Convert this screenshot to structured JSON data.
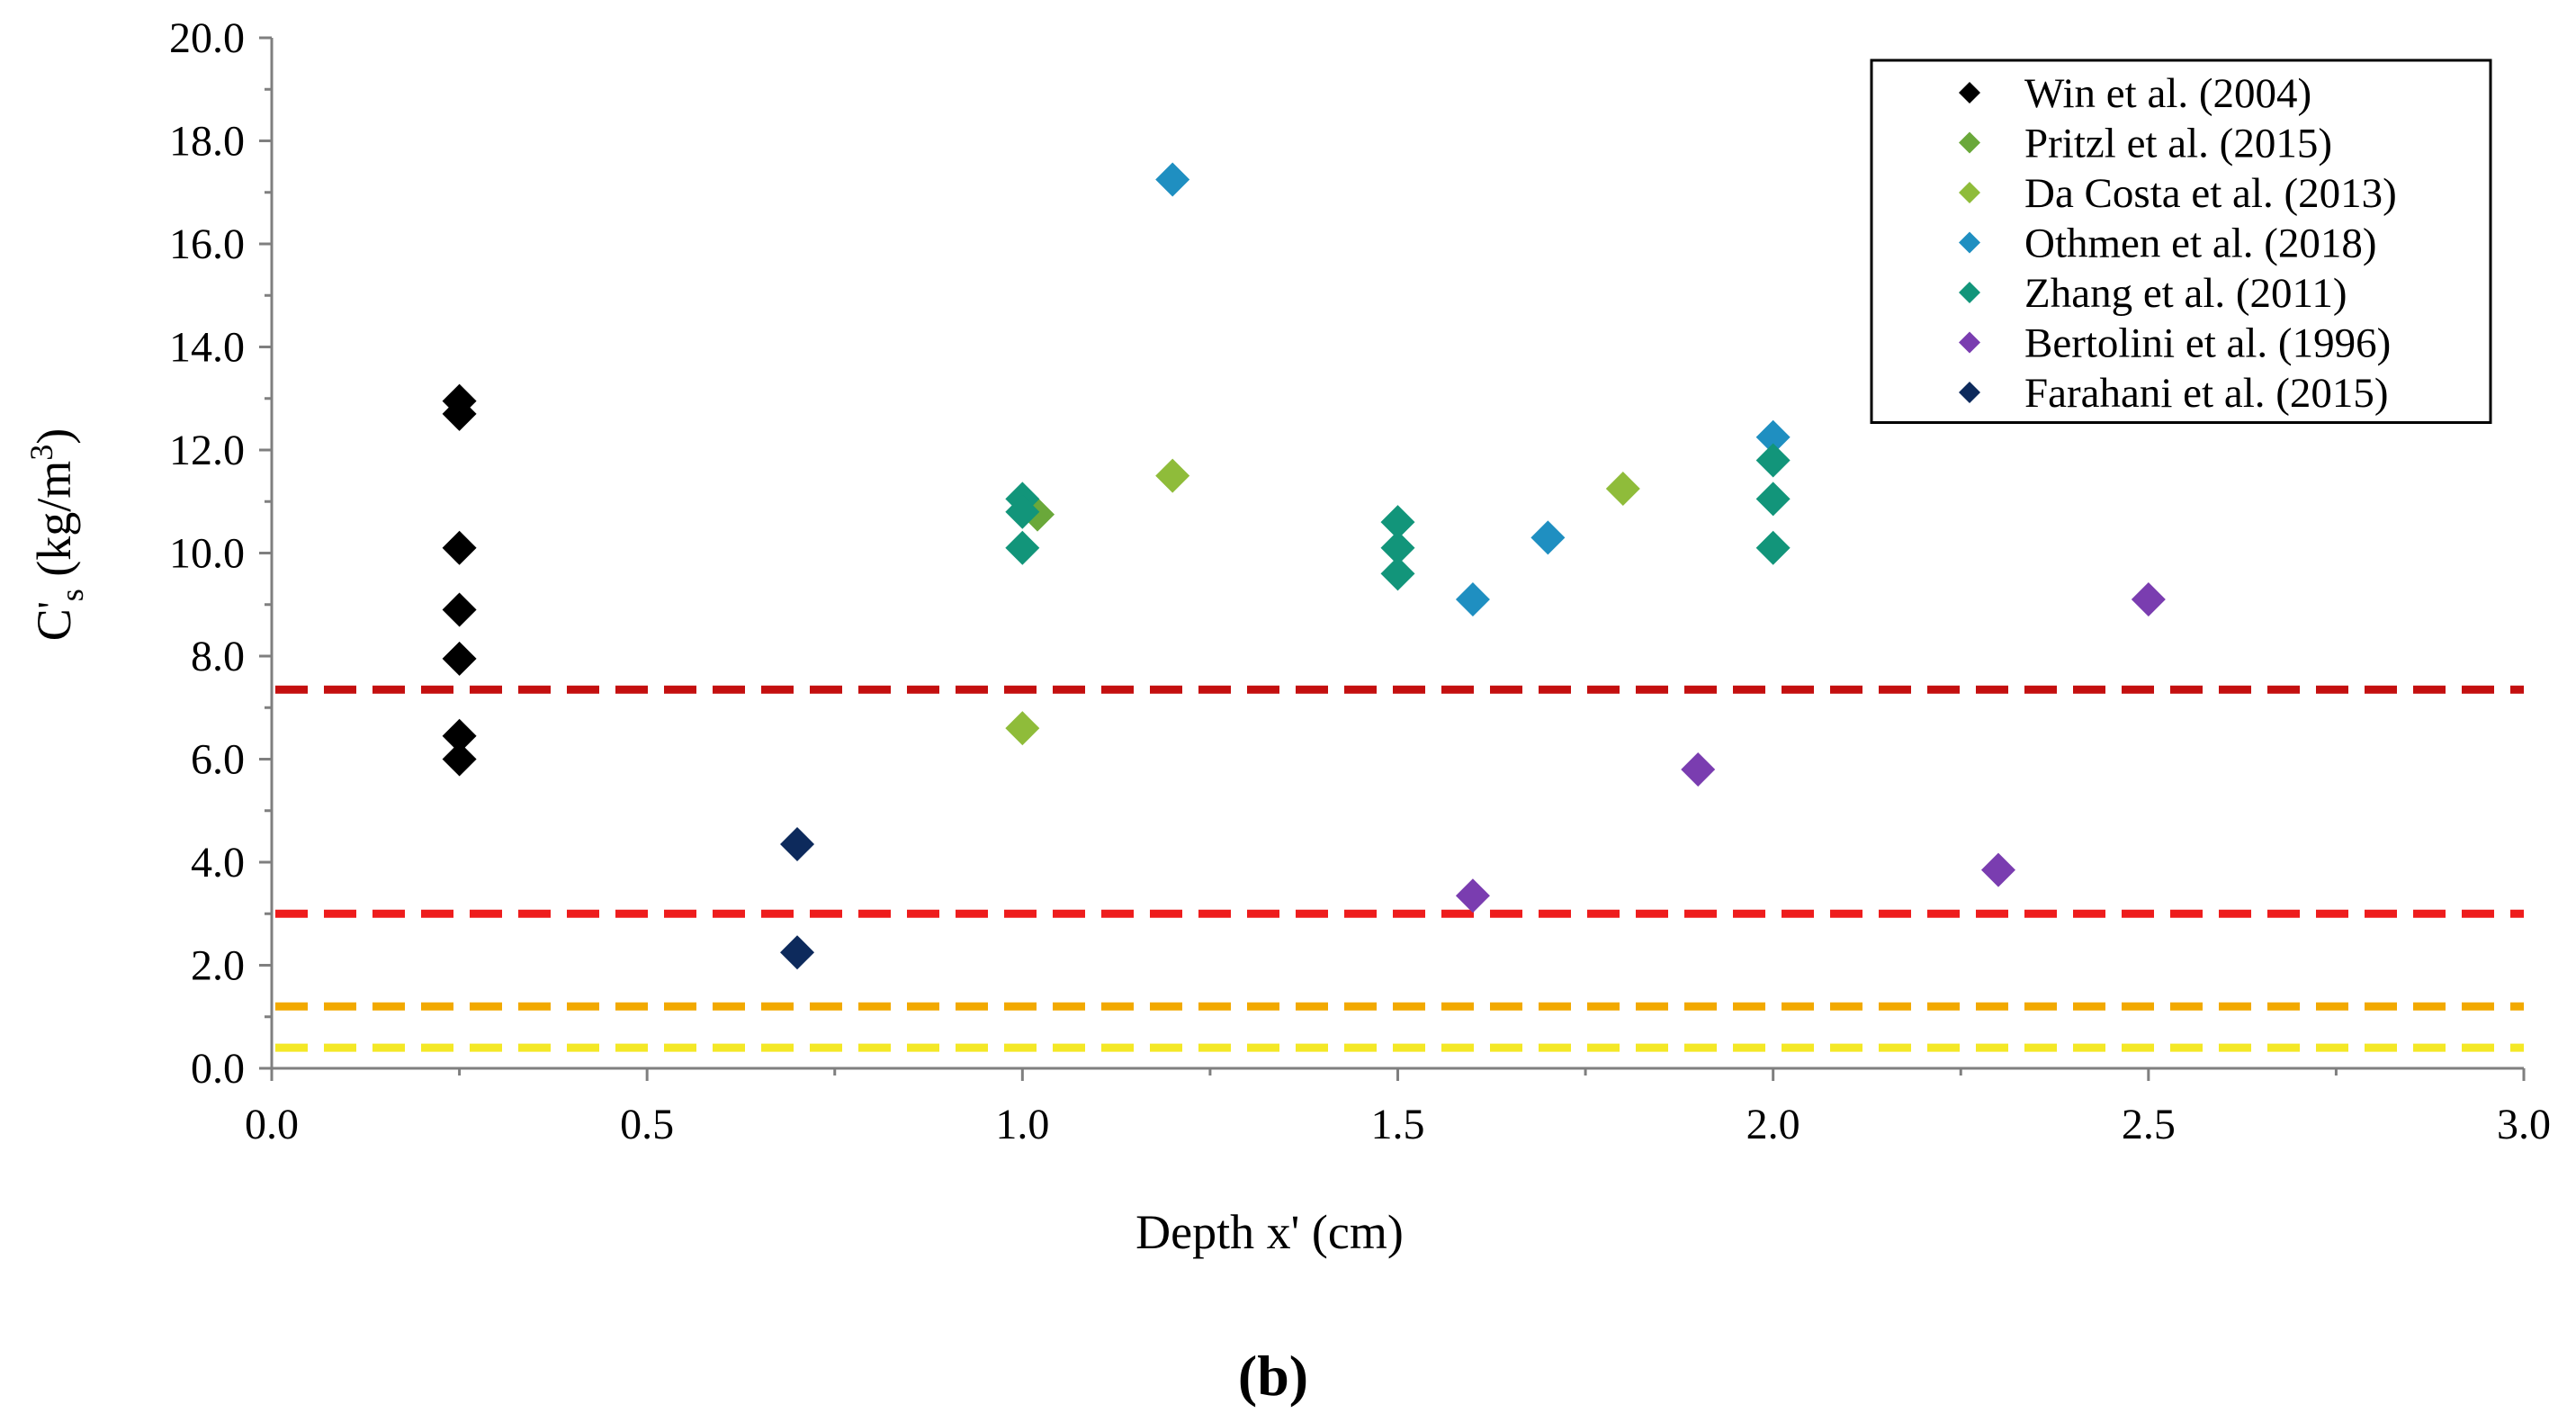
{
  "chart_data": {
    "type": "scatter",
    "xlabel": "Depth x' (cm)",
    "ylabel": {
      "base": "C",
      "sub": "s",
      "prime": "'",
      "unit_open": " (kg/m",
      "sup": "3",
      "unit_close": ")"
    },
    "xlim": [
      0,
      3
    ],
    "ylim": [
      0,
      20
    ],
    "xticks": [
      "0.0",
      "0.5",
      "1.0",
      "1.5",
      "2.0",
      "2.5",
      "3.0"
    ],
    "yticks": [
      "0.0",
      "2.0",
      "4.0",
      "6.0",
      "8.0",
      "10.0",
      "12.0",
      "14.0",
      "16.0",
      "18.0",
      "20.0"
    ],
    "grid": false,
    "legend_position": "top-right",
    "panel_label": "(b)",
    "series": [
      {
        "name": "Win et al. (2004)",
        "color": "#000000",
        "points": [
          [
            0.25,
            12.95
          ],
          [
            0.25,
            12.7
          ],
          [
            0.25,
            10.1
          ],
          [
            0.25,
            8.9
          ],
          [
            0.25,
            7.95
          ],
          [
            0.25,
            6.45
          ],
          [
            0.25,
            6.0
          ]
        ]
      },
      {
        "name": "Pritzl et al. (2015)",
        "color": "#6aa83a",
        "points": [
          [
            1.02,
            10.75
          ]
        ]
      },
      {
        "name": "Da Costa et al. (2013)",
        "color": "#8fbc3a",
        "points": [
          [
            1.0,
            6.6
          ],
          [
            1.2,
            11.5
          ],
          [
            1.8,
            11.25
          ]
        ]
      },
      {
        "name": "Othmen et al. (2018)",
        "color": "#1f8fc1",
        "points": [
          [
            1.2,
            17.25
          ],
          [
            1.6,
            9.1
          ],
          [
            1.7,
            10.3
          ],
          [
            2.0,
            12.25
          ]
        ]
      },
      {
        "name": "Zhang et al. (2011)",
        "color": "#12957a",
        "points": [
          [
            1.0,
            11.05
          ],
          [
            1.0,
            10.8
          ],
          [
            1.0,
            10.1
          ],
          [
            1.5,
            10.6
          ],
          [
            1.5,
            10.1
          ],
          [
            1.5,
            9.6
          ],
          [
            2.0,
            11.8
          ],
          [
            2.0,
            11.05
          ],
          [
            2.0,
            10.1
          ]
        ]
      },
      {
        "name": "Bertolini et al. (1996)",
        "color": "#7a3db0",
        "points": [
          [
            1.6,
            3.35
          ],
          [
            1.9,
            5.8
          ],
          [
            2.3,
            3.85
          ],
          [
            2.5,
            9.1
          ]
        ]
      },
      {
        "name": "Farahani et al. (2015)",
        "color": "#0d2a5c",
        "points": [
          [
            0.7,
            4.35
          ],
          [
            0.7,
            2.25
          ]
        ]
      }
    ],
    "reference_lines": [
      {
        "y": 7.35,
        "color": "#c40f0f"
      },
      {
        "y": 3.0,
        "color": "#ee1c1c"
      },
      {
        "y": 1.2,
        "color": "#f2a900"
      },
      {
        "y": 0.4,
        "color": "#f4e826"
      }
    ]
  }
}
